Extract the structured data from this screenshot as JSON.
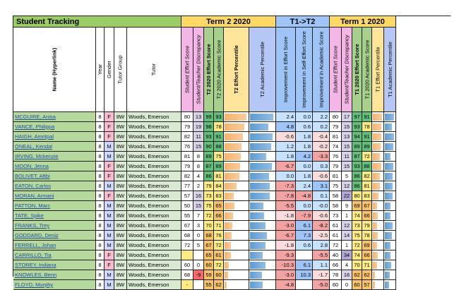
{
  "title": "Student Tracking",
  "groups": {
    "t2": "Term 2 2020",
    "diff": "T1->T2",
    "t1": "Term 1 2020"
  },
  "headers": {
    "name": "Name (Hyperlink)",
    "year": "Year",
    "gender": "Gender",
    "tutor_group": "Tutor Group",
    "tutor": "Tutor",
    "t2_student_effort": "Student Effort Score",
    "t2_discrepancy": "Student/Teacher Discrepancy",
    "t2_effort": "T2 2020 Effort Score",
    "t2_academic": "T2 2020 Academic Score",
    "t2_effort_pct": "T2 Effort Percentile",
    "t2_academic_pct": "T2 Academic Percentile",
    "d_effort": "Improvement in Effort Score",
    "d_self": "Improvement in Self-Effort Score",
    "d_academic": "Improvement in Academic Score",
    "t1_student_effort": "Student Effort Score",
    "t1_discrepancy": "Student/Teacher Discrepancy",
    "t1_effort": "T1 2020 Effort Score",
    "t1_academic": "T1 2020 Academic Score",
    "t1_effort_pct": "T1 Effort Percentile",
    "t1_academic_pct": "T1 Academic Percentile"
  },
  "colors": {
    "title_bg": "#9ccc65",
    "name_bg": "#b5d99c",
    "year_bg": "#ffffff",
    "gender_f": "#f8bbd0",
    "gender_m": "#cfd8ff",
    "t2_group_bg": "#ffd966",
    "diff_group_bg": "#9fc5f8",
    "t1_group_bg": "#ffd966",
    "hdr_pink": "#f4b6e6",
    "hdr_blue": "#b4c7f5",
    "hdr_green": "#a8d08d",
    "hdr_yellow": "#ffe599",
    "hdr_blue2": "#9fc5f8",
    "hdr_purple": "#d9c2f0",
    "pct_orange": "#f6b26b",
    "pct_blue": "#5b9bd5",
    "neg": "#f4a3a3",
    "pos": "#c6e2ff",
    "good": "#63be7b",
    "mid": "#ffeb84",
    "low": "#f8696b"
  },
  "rows": [
    {
      "name": "MCGUIRE, Anisa",
      "year": "8",
      "gender": "F",
      "group": "8W",
      "tutor": "Woods, Emerson",
      "t2se": "80",
      "t2sd": "13",
      "t2e": "99",
      "t2a": "93",
      "t2ep": 0.93,
      "t2ap": 0.95,
      "de": "2.4",
      "ds": "0.0",
      "da": "2.2",
      "t1se": "80",
      "t1sd": "17",
      "t1e": "97",
      "t1a": "91",
      "t1ep": 0.91,
      "t1ap": 0.9
    },
    {
      "name": "VANCE, Philippa",
      "year": "8",
      "gender": "F",
      "group": "8W",
      "tutor": "Woods, Emerson",
      "t2se": "79",
      "t2sd": "19",
      "t2e": "98",
      "t2a": "78",
      "t2ep": 0.85,
      "t2ap": 0.75,
      "de": "4.8",
      "ds": "0.6",
      "da": "0.2",
      "t1se": "79",
      "t1sd": "15",
      "t1e": "93",
      "t1a": "78",
      "t1ep": 0.85,
      "t1ap": 0.7
    },
    {
      "name": "HAIGH, Amritpal",
      "year": "8",
      "gender": "F",
      "group": "8W",
      "tutor": "Woods, Emerson",
      "t2se": "82",
      "t2sd": "11",
      "t2e": "93",
      "t2a": "91",
      "t2ep": 0.8,
      "t2ap": 0.9,
      "de": "-0.6",
      "ds": "1.8",
      "da": "-0.4",
      "t1se": "81",
      "t1sd": "13",
      "t1e": "94",
      "t1a": "91",
      "t1ep": 0.85,
      "t1ap": 0.9
    },
    {
      "name": "ONEAL, Kendal",
      "year": "8",
      "gender": "M",
      "group": "8W",
      "tutor": "Woods, Emerson",
      "t2se": "76",
      "t2sd": "15",
      "t2e": "90",
      "t2a": "88",
      "t2ep": 0.72,
      "t2ap": 0.85,
      "de": "1.2",
      "ds": "1.8",
      "da": "-0.2",
      "t1se": "74",
      "t1sd": "15",
      "t1e": "89",
      "t1a": "89",
      "t1ep": 0.75,
      "t1ap": 0.85
    },
    {
      "name": "IRVING, Mckenzie",
      "year": "8",
      "gender": "M",
      "group": "8W",
      "tutor": "Woods, Emerson",
      "t2se": "81",
      "t2sd": "8",
      "t2e": "89",
      "t2a": "75",
      "t2ep": 0.7,
      "t2ap": 0.65,
      "de": "1.8",
      "ds": "4.2",
      "da": "-3.3",
      "t1se": "76",
      "t1sd": "11",
      "t1e": "87",
      "t1a": "72",
      "t1ep": 0.7,
      "t1ap": 0.6
    },
    {
      "name": "MOON, Jenna",
      "year": "8",
      "gender": "F",
      "group": "8W",
      "tutor": "Woods, Emerson",
      "t2se": "79",
      "t2sd": "8",
      "t2e": "87",
      "t2a": "89",
      "t2ep": 0.68,
      "t2ap": 0.88,
      "de": "-6.7",
      "ds": "0.0",
      "da": "0.3",
      "t1se": "79",
      "t1sd": "15",
      "t1e": "93",
      "t1a": "88",
      "t1ep": 0.85,
      "t1ap": 0.85
    },
    {
      "name": "BOLIVET, Aftbi",
      "year": "8",
      "gender": "F",
      "group": "8W",
      "tutor": "Woods, Emerson",
      "t2se": "82",
      "t2sd": "4",
      "t2e": "86",
      "t2a": "81",
      "t2ep": 0.65,
      "t2ap": 0.78,
      "de": "0.0",
      "ds": "1.8",
      "da": "-0.6",
      "t1se": "81",
      "t1sd": "5",
      "t1e": "86",
      "t1a": "82",
      "t1ep": 0.7,
      "t1ap": 0.78
    },
    {
      "name": "EATON, Carlos",
      "year": "8",
      "gender": "M",
      "group": "8W",
      "tutor": "Woods, Emerson",
      "t2se": "77",
      "t2sd": "2",
      "t2e": "79",
      "t2a": "84",
      "t2ep": 0.5,
      "t2ap": 0.8,
      "de": "-7.3",
      "ds": "2.4",
      "da": "3.1",
      "t1se": "75",
      "t1sd": "12",
      "t1e": "86",
      "t1a": "81",
      "t1ep": 0.7,
      "t1ap": 0.75
    },
    {
      "name": "MORAN, Armani",
      "year": "8",
      "gender": "F",
      "group": "8W",
      "tutor": "Woods, Emerson",
      "t2se": "57",
      "t2sd": "16",
      "t2e": "73",
      "t2a": "83",
      "t2ep": 0.38,
      "t2ap": 0.8,
      "de": "-7.8",
      "ds": "-4.8",
      "da": "0.1",
      "t1se": "58",
      "t1sd": "22",
      "t1e": "80",
      "t1a": "83",
      "t1ep": 0.55,
      "t1ap": 0.8
    },
    {
      "name": "PATTON, Marc",
      "year": "8",
      "gender": "M",
      "group": "8W",
      "tutor": "Woods, Emerson",
      "t2se": "50",
      "t2sd": "15",
      "t2e": "75",
      "t2a": "65",
      "t2ep": 0.42,
      "t2ap": 0.55,
      "de": "-5.5",
      "ds": "0.0",
      "da": "-0.0",
      "t1se": "58",
      "t1sd": "9",
      "t1e": "69",
      "t1a": "67",
      "t1ep": 0.4,
      "t1ap": 0.6
    },
    {
      "name": "TATE, Spike",
      "year": "8",
      "gender": "M",
      "group": "8W",
      "tutor": "Woods, Emerson",
      "t2se": "55",
      "t2sd": "7",
      "t2e": "72",
      "t2a": "66",
      "t2ep": 0.36,
      "t2ap": 0.58,
      "de": "-1.8",
      "ds": "-7.9",
      "da": "-0.6",
      "t1se": "73",
      "t1sd": "1",
      "t1e": "74",
      "t1a": "66",
      "t1ep": 0.48,
      "t1ap": 0.58
    },
    {
      "name": "FRANKS, Trey",
      "year": "8",
      "gender": "M",
      "group": "8W",
      "tutor": "Woods, Emerson",
      "t2se": "67",
      "t2sd": "3",
      "t2e": "70",
      "t2a": "71",
      "t2ep": 0.32,
      "t2ap": 0.62,
      "de": "-3.0",
      "ds": "6.1",
      "da": "-8.2",
      "t1se": "61",
      "t1sd": "12",
      "t1e": "73",
      "t1a": "79",
      "t1ep": 0.46,
      "t1ap": 0.75
    },
    {
      "name": "GODDARD, Deniz",
      "year": "8",
      "gender": "M",
      "group": "8W",
      "tutor": "Woods, Emerson",
      "t2se": "68",
      "t2sd": "0",
      "t2e": "68",
      "t2a": "76",
      "t2ep": 0.3,
      "t2ap": 0.68,
      "de": "-6.7",
      "ds": "7.3",
      "da": "-2.5",
      "t1se": "61",
      "t1sd": "14",
      "t1e": "75",
      "t1a": "78",
      "t1ep": 0.5,
      "t1ap": 0.72
    },
    {
      "name": "FERRELL, Johan",
      "year": "8",
      "gender": "M",
      "group": "8W",
      "tutor": "Woods, Emerson",
      "t2se": "72",
      "t2sd": "5",
      "t2e": "67",
      "t2a": "72",
      "t2ep": 0.28,
      "t2ap": 0.63,
      "de": "-1.8",
      "ds": "0.6",
      "da": "2.8",
      "t1se": "72",
      "t1sd": "1",
      "t1e": "72",
      "t1a": "69",
      "t1ep": 0.44,
      "t1ap": 0.6
    },
    {
      "name": "CARRILLO, Tia",
      "year": "8",
      "gender": "F",
      "group": "8W",
      "tutor": "Woods, Emerson",
      "t2se": "",
      "t2sd": "",
      "t2e": "65",
      "t2a": "61",
      "t2ep": 0.26,
      "t2ap": 0.5,
      "de": "-9.3",
      "ds": "",
      "da": "-5.5",
      "t1se": "40",
      "t1sd": "34",
      "t1e": "74",
      "t1a": "66",
      "t1ep": 0.48,
      "t1ap": 0.58
    },
    {
      "name": "STOREY, Indiana",
      "year": "8",
      "gender": "F",
      "group": "8W",
      "tutor": "Woods, Emerson",
      "t2se": "60",
      "t2sd": "0",
      "t2e": "60",
      "t2a": "72",
      "t2ep": 0.18,
      "t2ap": 0.63,
      "de": "-10.3",
      "ds": "6.1",
      "da": "1.1",
      "t1se": "66",
      "t1sd": "4",
      "t1e": "70",
      "t1a": "71",
      "t1ep": 0.42,
      "t1ap": 0.62
    },
    {
      "name": "KNOWLES, Benn",
      "year": "8",
      "gender": "M",
      "group": "8W",
      "tutor": "Woods, Emerson",
      "t2se": "68",
      "t2sd": "-9",
      "t2e": "59",
      "t2a": "60",
      "t2ep": 0.16,
      "t2ap": 0.48,
      "de": "-3.0",
      "ds": "10.3",
      "da": "-1.7",
      "t1se": "78",
      "t1sd": "16",
      "t1e": "62",
      "t1a": "62",
      "t1ep": 0.22,
      "t1ap": 0.52
    },
    {
      "name": "FLOYD, Murphy",
      "year": "8",
      "gender": "M",
      "group": "8W",
      "tutor": "Woods, Emerson",
      "t2se": "-",
      "t2sd": "",
      "t2e": "55",
      "t2a": "62",
      "t2ep": 0.1,
      "t2ap": 0.52,
      "de": "-4.8",
      "ds": "",
      "da": "-5.0",
      "t1se": "60",
      "t1sd": "0",
      "t1e": "60",
      "t1a": "57",
      "t1ep": 0.18,
      "t1ap": 0.45
    }
  ]
}
